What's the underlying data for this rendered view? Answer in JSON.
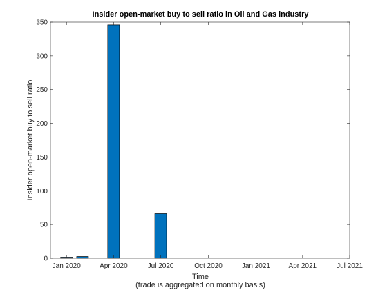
{
  "chart_data": {
    "type": "bar",
    "title": "Insider open-market buy to sell ratio in Oil and Gas industry",
    "xlabel": "Time",
    "xlabel_note": "(trade is aggregated on monthly basis)",
    "ylabel": "Insider open-market buy to sell ratio",
    "ylim": [
      0,
      350
    ],
    "xlim": [
      "2019-12-01",
      "2021-07-01"
    ],
    "y_ticks": [
      0,
      50,
      100,
      150,
      200,
      250,
      300,
      350
    ],
    "x_ticks": [
      {
        "date": "2020-01-01",
        "label": "Jan 2020"
      },
      {
        "date": "2020-04-01",
        "label": "Apr 2020"
      },
      {
        "date": "2020-07-01",
        "label": "Jul 2020"
      },
      {
        "date": "2020-10-01",
        "label": "Oct 2020"
      },
      {
        "date": "2021-01-01",
        "label": "Jan 2021"
      },
      {
        "date": "2021-04-01",
        "label": "Apr 2021"
      },
      {
        "date": "2021-07-01",
        "label": "Jul 2021"
      }
    ],
    "x": [
      "2020-01-01",
      "2020-02-01",
      "2020-03-01",
      "2020-04-01",
      "2020-05-01",
      "2020-06-01",
      "2020-07-01"
    ],
    "values": [
      1.5,
      2.5,
      0,
      346,
      0,
      0,
      66
    ],
    "bar_color": "#0072BD",
    "grid": false
  }
}
